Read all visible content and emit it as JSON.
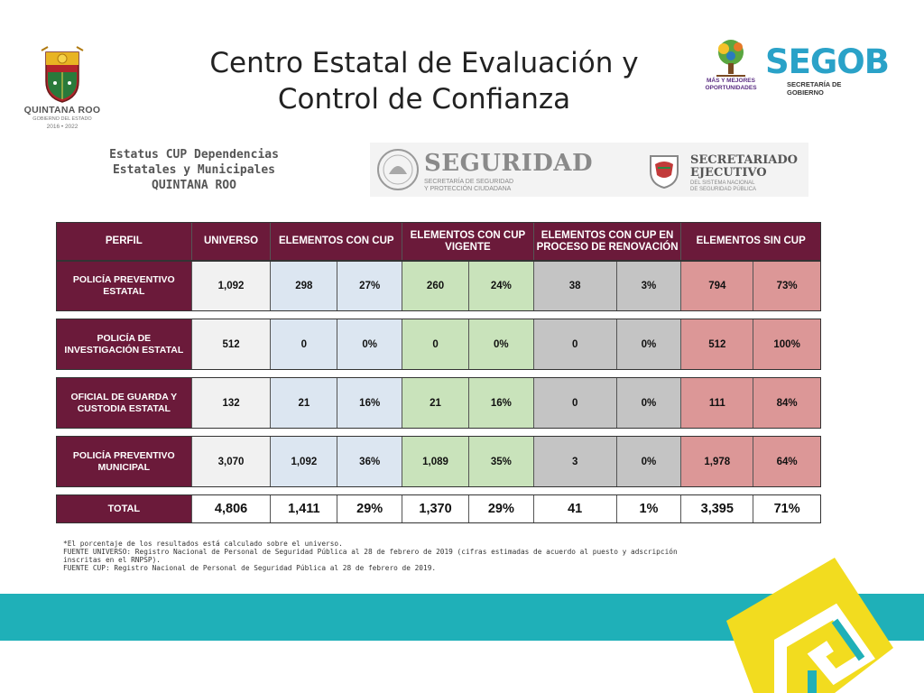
{
  "title": {
    "line1": "Centro Estatal de Evaluación y",
    "line2": "Control de Confianza"
  },
  "logos": {
    "quintana_roo": {
      "name": "QUINTANA ROO",
      "subtitle": "GOBIERNO DEL ESTADO",
      "years": "2016 • 2022"
    },
    "segob": {
      "tagline1": "MÁS Y MEJORES",
      "tagline2": "OPORTUNIDADES",
      "name": "SEGOB",
      "subtitle": "SECRETARÍA DE GOBIERNO"
    },
    "seguridad": {
      "name": "SEGURIDAD",
      "sub1": "SECRETARÍA DE SEGURIDAD",
      "sub2": "Y PROTECCIÓN CIUDADANA"
    },
    "secretariado": {
      "line1": "SECRETARIADO",
      "line2": "EJECUTIVO",
      "sub1": "DEL SISTEMA NACIONAL",
      "sub2": "DE SEGURIDAD PÚBLICA"
    }
  },
  "estatus": {
    "line1": "Estatus CUP  Dependencias",
    "line2": "Estatales y Municipales",
    "line3": "QUINTANA ROO"
  },
  "table": {
    "headers": {
      "perfil": "PERFIL",
      "universo": "UNIVERSO",
      "con_cup": "ELEMENTOS CON CUP",
      "cup_vigente": "ELEMENTOS CON CUP VIGENTE",
      "renovacion": "ELEMENTOS CON CUP EN PROCESO DE RENOVACIÓN",
      "sin_cup": "ELEMENTOS SIN CUP"
    },
    "rows": [
      {
        "perfil": "POLICÍA PREVENTIVO ESTATAL",
        "universo": "1,092",
        "con_cup": "298",
        "con_cup_pct": "27%",
        "vigente": "260",
        "vigente_pct": "24%",
        "renov": "38",
        "renov_pct": "3%",
        "sin": "794",
        "sin_pct": "73%"
      },
      {
        "perfil": "POLICÍA DE INVESTIGACIÓN ESTATAL",
        "universo": "512",
        "con_cup": "0",
        "con_cup_pct": "0%",
        "vigente": "0",
        "vigente_pct": "0%",
        "renov": "0",
        "renov_pct": "0%",
        "sin": "512",
        "sin_pct": "100%"
      },
      {
        "perfil": "OFICIAL DE GUARDA Y CUSTODIA ESTATAL",
        "universo": "132",
        "con_cup": "21",
        "con_cup_pct": "16%",
        "vigente": "21",
        "vigente_pct": "16%",
        "renov": "0",
        "renov_pct": "0%",
        "sin": "111",
        "sin_pct": "84%"
      },
      {
        "perfil": "POLICÍA PREVENTIVO MUNICIPAL",
        "universo": "3,070",
        "con_cup": "1,092",
        "con_cup_pct": "36%",
        "vigente": "1,089",
        "vigente_pct": "35%",
        "renov": "3",
        "renov_pct": "0%",
        "sin": "1,978",
        "sin_pct": "64%"
      }
    ],
    "total": {
      "perfil": "TOTAL",
      "universo": "4,806",
      "con_cup": "1,411",
      "con_cup_pct": "29%",
      "vigente": "1,370",
      "vigente_pct": "29%",
      "renov": "41",
      "renov_pct": "1%",
      "sin": "3,395",
      "sin_pct": "71%"
    }
  },
  "notes": {
    "n1": "*El porcentaje de los resultados está calculado sobre el universo.",
    "n2": "FUENTE UNIVERSO: Registro Nacional de Personal de Seguridad Pública al 28 de febrero de 2019 (cifras estimadas de acuerdo al puesto y adscripción",
    "n3": "inscritas en el RNPSP).",
    "n4": "FUENTE CUP: Registro Nacional de Personal de Seguridad Pública al 28 de febrero de 2019."
  },
  "colors": {
    "header": "#6b1a3a",
    "universo": "#f1f1f1",
    "con_cup": "#dce6f1",
    "vigente": "#c9e3bb",
    "renovacion": "#c4c4c4",
    "sin_cup": "#dc9797",
    "band": "#1fb0b8",
    "deco": "#f2dc1f"
  }
}
